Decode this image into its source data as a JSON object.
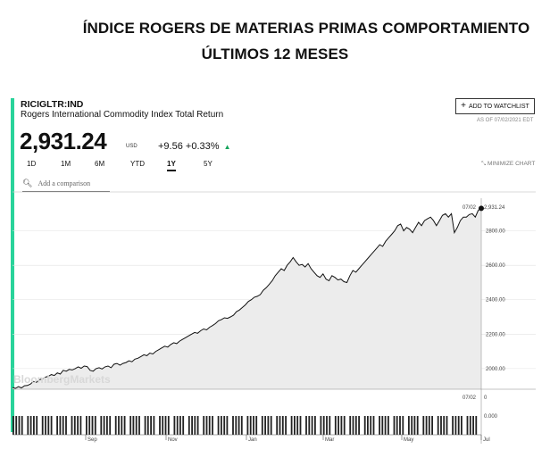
{
  "heading": {
    "line1": "ÍNDICE ROGERS DE  MATERIAS PRIMAS COMPORTAMIENTO",
    "line2": "ÚLTIMOS 12 MESES"
  },
  "quote": {
    "ticker": "RICIGLTR:IND",
    "name": "Rogers International Commodity Index Total Return",
    "price": "2,931.24",
    "currency": "USD",
    "change": "+9.56",
    "change_pct": "+0.33%",
    "change_icon": "up-triangle-icon",
    "as_of": "AS OF 07/02/2021 EDT",
    "positive_color": "#15a45b"
  },
  "toolbar": {
    "watchlist_label": "ADD TO WATCHLIST",
    "minimize_label": "MINIMIZE CHART",
    "compare_placeholder": "Add a comparison",
    "active_tab": "1Y",
    "tabs": [
      "1D",
      "1M",
      "6M",
      "YTD",
      "1Y",
      "5Y"
    ]
  },
  "chart_data": {
    "type": "area",
    "title": "",
    "xlabel": "",
    "ylabel": "",
    "x_ticks": [
      "Sep",
      "Nov",
      "Jan",
      "Mar",
      "May",
      "Jul"
    ],
    "y_ticks": [
      "2000.00",
      "2200.00",
      "2400.00",
      "2600.00",
      "2800.00"
    ],
    "ylim": [
      1880,
      2990
    ],
    "current_date_label": "07/02",
    "current_value_label": "2,931.24",
    "watermark": "BloombergMarkets",
    "volume_panel": {
      "date_label": "07/02",
      "value_label": "0",
      "tick_label": "0.000"
    },
    "series": [
      {
        "values": [
          1890,
          1885,
          1895,
          1888,
          1900,
          1902,
          1910,
          1925,
          1920,
          1935,
          1940,
          1950,
          1955,
          1965,
          1960,
          1975,
          1968,
          1990,
          1985,
          1995,
          1992,
          2000,
          2010,
          2002,
          2015,
          2012,
          1990,
          1985,
          2000,
          2005,
          1998,
          2010,
          2015,
          2005,
          2025,
          2030,
          2020,
          2030,
          2035,
          2045,
          2040,
          2055,
          2060,
          2070,
          2080,
          2075,
          2090,
          2085,
          2100,
          2110,
          2120,
          2130,
          2125,
          2140,
          2150,
          2145,
          2160,
          2170,
          2180,
          2190,
          2200,
          2210,
          2205,
          2220,
          2230,
          2225,
          2240,
          2250,
          2262,
          2278,
          2285,
          2295,
          2292,
          2300,
          2310,
          2330,
          2340,
          2355,
          2370,
          2390,
          2400,
          2415,
          2420,
          2430,
          2455,
          2470,
          2490,
          2510,
          2540,
          2560,
          2580,
          2570,
          2600,
          2620,
          2645,
          2620,
          2600,
          2605,
          2590,
          2610,
          2580,
          2560,
          2540,
          2530,
          2550,
          2520,
          2510,
          2540,
          2530,
          2515,
          2520,
          2505,
          2500,
          2540,
          2570,
          2560,
          2580,
          2600,
          2620,
          2640,
          2660,
          2680,
          2700,
          2720,
          2710,
          2740,
          2760,
          2780,
          2800,
          2830,
          2840,
          2800,
          2820,
          2810,
          2790,
          2820,
          2850,
          2830,
          2860,
          2870,
          2880,
          2860,
          2830,
          2860,
          2890,
          2900,
          2880,
          2900,
          2790,
          2820,
          2860,
          2880,
          2880,
          2895,
          2900,
          2880,
          2920,
          2931.24
        ]
      }
    ]
  }
}
